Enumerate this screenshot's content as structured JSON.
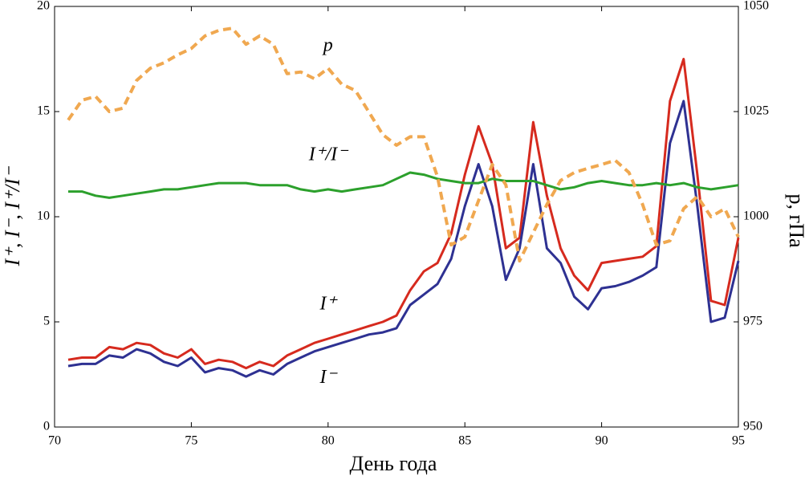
{
  "chart_data": {
    "type": "line",
    "xlabel": "День года",
    "ylabel": "I⁺, I⁻, I⁺/I⁻",
    "y2label": "p, гПа",
    "xlim": [
      70,
      95
    ],
    "xticks": [
      70,
      75,
      80,
      85,
      90,
      95
    ],
    "ylim": [
      0,
      20
    ],
    "yticks": [
      0,
      5,
      10,
      15,
      20
    ],
    "y2lim": [
      950,
      1050
    ],
    "y2ticks": [
      950,
      975,
      1000,
      1025,
      1050
    ],
    "x": [
      70.5,
      71,
      71.5,
      72,
      72.5,
      73,
      73.5,
      74,
      74.5,
      75,
      75.5,
      76,
      76.5,
      77,
      77.5,
      78,
      78.5,
      79,
      79.5,
      80,
      80.5,
      81,
      81.5,
      82,
      82.5,
      83,
      83.5,
      84,
      84.5,
      85,
      85.5,
      86,
      86.5,
      87,
      87.5,
      88,
      88.5,
      89,
      89.5,
      90,
      90.5,
      91,
      91.5,
      92,
      92.5,
      93,
      93.5,
      94,
      94.5,
      95
    ],
    "series": [
      {
        "name": "I⁺",
        "color": "#d62a1e",
        "dashed": false,
        "values": [
          3.2,
          3.3,
          3.3,
          3.8,
          3.7,
          4.0,
          3.9,
          3.5,
          3.3,
          3.7,
          3.0,
          3.2,
          3.1,
          2.8,
          3.1,
          2.9,
          3.4,
          3.7,
          4.0,
          4.2,
          4.4,
          4.6,
          4.8,
          5.0,
          5.3,
          6.5,
          7.4,
          7.8,
          9.2,
          12.0,
          14.3,
          12.5,
          8.5,
          9.0,
          14.5,
          11.0,
          8.5,
          7.2,
          6.5,
          7.8,
          7.9,
          8.0,
          8.1,
          8.6,
          15.5,
          17.5,
          12.0,
          6.0,
          5.8,
          9.0
        ]
      },
      {
        "name": "I⁻",
        "color": "#2e3192",
        "dashed": false,
        "values": [
          2.9,
          3.0,
          3.0,
          3.4,
          3.3,
          3.7,
          3.5,
          3.1,
          2.9,
          3.3,
          2.6,
          2.8,
          2.7,
          2.4,
          2.7,
          2.5,
          3.0,
          3.3,
          3.6,
          3.8,
          4.0,
          4.2,
          4.4,
          4.5,
          4.7,
          5.8,
          6.3,
          6.8,
          8.0,
          10.5,
          12.5,
          10.5,
          7.0,
          8.5,
          12.5,
          8.5,
          7.8,
          6.2,
          5.6,
          6.6,
          6.7,
          6.9,
          7.2,
          7.6,
          13.5,
          15.5,
          10.5,
          5.0,
          5.2,
          7.9
        ]
      },
      {
        "name": "I⁺/I⁻",
        "color": "#2ca02c",
        "dashed": false,
        "values": [
          11.2,
          11.2,
          11.0,
          10.9,
          11.0,
          11.1,
          11.2,
          11.3,
          11.3,
          11.4,
          11.5,
          11.6,
          11.6,
          11.6,
          11.5,
          11.5,
          11.5,
          11.3,
          11.2,
          11.3,
          11.2,
          11.3,
          11.4,
          11.5,
          11.8,
          12.1,
          12.0,
          11.8,
          11.7,
          11.6,
          11.6,
          11.8,
          11.7,
          11.7,
          11.7,
          11.5,
          11.3,
          11.4,
          11.6,
          11.7,
          11.6,
          11.5,
          11.5,
          11.6,
          11.5,
          11.6,
          11.4,
          11.3,
          11.4,
          11.5
        ]
      },
      {
        "name": "p",
        "color": "#f0a850",
        "dashed": true,
        "axis": "y2",
        "values": [
          1023,
          1027.7,
          1028.6,
          1025,
          1025.8,
          1032.4,
          1035.3,
          1036.6,
          1038.5,
          1040,
          1043,
          1044.3,
          1044.8,
          1041,
          1043,
          1041,
          1034,
          1034.4,
          1032.8,
          1035.3,
          1031.5,
          1030,
          1024.8,
          1019.5,
          1017,
          1019,
          1019,
          1009.5,
          993.3,
          995.2,
          1003.8,
          1012.4,
          1007.6,
          989.5,
          996.2,
          1002.9,
          1008.6,
          1010.5,
          1011.5,
          1012.4,
          1013.4,
          1010.5,
          1002.9,
          993.3,
          994.3,
          1001.9,
          1004.8,
          1000,
          1001.9,
          995.2
        ]
      }
    ],
    "annotations": [
      {
        "text": "p",
        "x": 80,
        "y": 18.1
      },
      {
        "text": "I⁺/I⁻",
        "x": 80,
        "y": 12.9
      },
      {
        "text": "I⁺",
        "x": 80,
        "y": 5.8
      },
      {
        "text": "I⁻",
        "x": 80,
        "y": 2.3
      }
    ]
  }
}
